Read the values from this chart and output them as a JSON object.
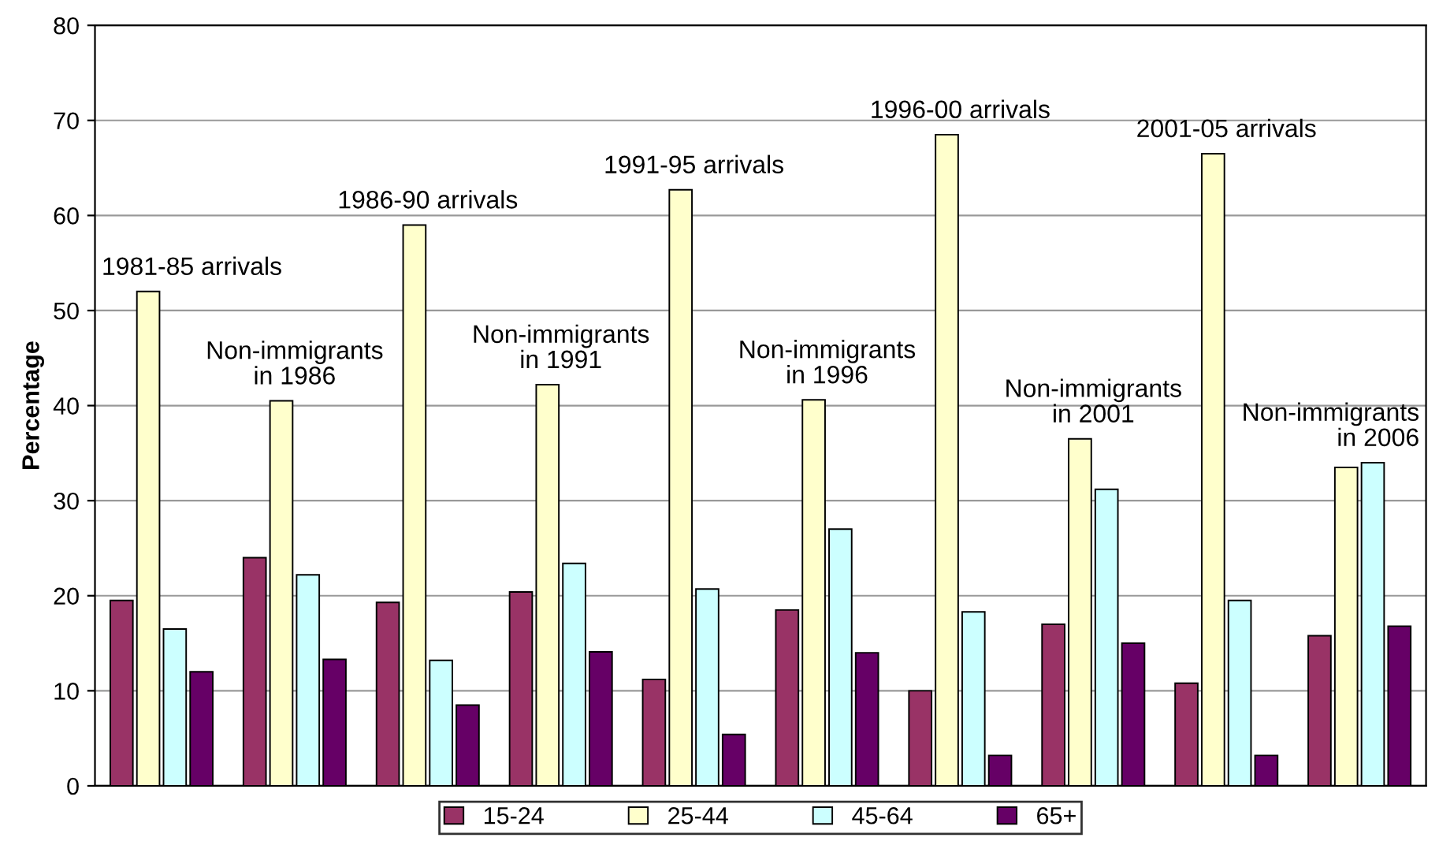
{
  "chart_data": {
    "type": "bar",
    "ylabel": "Percentage",
    "categories": [
      null,
      null,
      null,
      null,
      null,
      null,
      null,
      null,
      null,
      null
    ],
    "series": [
      {
        "name": "15-24",
        "color": "#993366",
        "values": [
          19.5,
          24,
          19.3,
          20.4,
          11.2,
          18.5,
          10,
          17,
          10.8,
          15.8
        ]
      },
      {
        "name": "25-44",
        "color": "#ffffcc",
        "values": [
          52,
          40.5,
          59,
          42.2,
          62.7,
          40.6,
          68.5,
          36.5,
          66.5,
          33.5
        ]
      },
      {
        "name": "45-64",
        "color": "#ccffff",
        "values": [
          16.5,
          22.2,
          13.2,
          23.4,
          20.7,
          27,
          18.3,
          31.2,
          19.5,
          34
        ]
      },
      {
        "name": "65+",
        "color": "#660066",
        "values": [
          12,
          13.3,
          8.5,
          14.1,
          5.4,
          14,
          3.2,
          15,
          3.2,
          16.8
        ]
      }
    ],
    "annotations": [
      "1981-85 arrivals",
      "Non-immigrants\nin 1986",
      "1986-90 arrivals",
      "Non-immigrants\nin 1991",
      "1991-95 arrivals",
      "Non-immigrants\nin 1996",
      "1996-00 arrivals",
      "Non-immigrants\nin 2001",
      "2001-05 arrivals",
      "Non-immigrants\nin 2006"
    ],
    "ylim": [
      0,
      80
    ],
    "yticks": [
      0,
      10,
      20,
      30,
      40,
      50,
      60,
      70,
      80
    ],
    "grid": "y",
    "legend": "bottom"
  }
}
